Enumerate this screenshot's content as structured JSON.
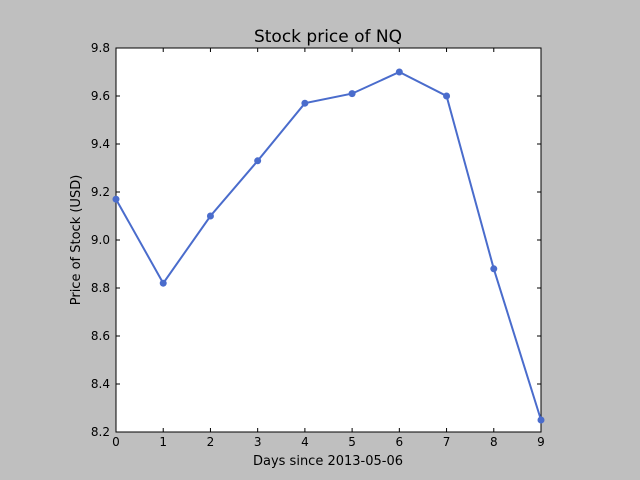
{
  "chart_data": {
    "type": "line",
    "title": "Stock price of NQ",
    "xlabel": "Days since 2013-05-06",
    "ylabel": "Price of Stock (USD)",
    "x": [
      0,
      1,
      2,
      3,
      4,
      5,
      6,
      7,
      8,
      9
    ],
    "series": [
      {
        "values": [
          9.17,
          8.82,
          9.1,
          9.33,
          9.57,
          9.61,
          9.7,
          9.6,
          8.88,
          8.25
        ],
        "color": "#4a6ccc"
      }
    ],
    "xlim": [
      0,
      9
    ],
    "ylim": [
      8.2,
      9.8
    ],
    "xticks": [
      "0",
      "1",
      "2",
      "3",
      "4",
      "5",
      "6",
      "7",
      "8",
      "9"
    ],
    "yticks": [
      "8.2",
      "8.4",
      "8.6",
      "8.8",
      "9.0",
      "9.2",
      "9.4",
      "9.6",
      "9.8"
    ],
    "grid": false,
    "legend": "none",
    "background": "#bfbfbf",
    "plot_background": "#ffffff"
  }
}
